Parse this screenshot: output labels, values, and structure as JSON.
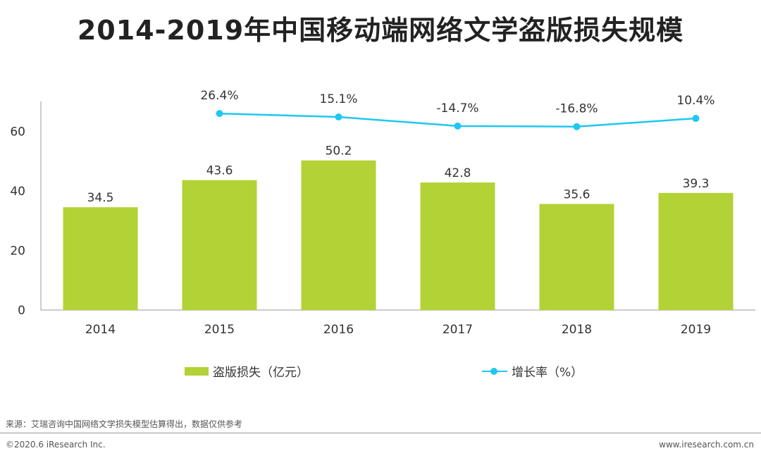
{
  "title": "2014-2019年中国移动端网络文学盗版损失规模",
  "chart_data": {
    "type": "bar+line",
    "categories": [
      "2014",
      "2015",
      "2016",
      "2017",
      "2018",
      "2019"
    ],
    "bar_series": {
      "name": "盗版损失（亿元）",
      "values": [
        34.5,
        43.6,
        50.2,
        42.8,
        35.6,
        39.3
      ],
      "labels": [
        "34.5",
        "43.6",
        "50.2",
        "42.8",
        "35.6",
        "39.3"
      ],
      "color": "#b2d235"
    },
    "line_series": {
      "name": "增长率（%）",
      "values": [
        null,
        26.4,
        15.1,
        -14.7,
        -16.8,
        10.4
      ],
      "labels": [
        "",
        "26.4%",
        "15.1%",
        "-14.7%",
        "-16.8%",
        "10.4%"
      ],
      "color": "#1ec8f0"
    },
    "y_axis": {
      "min": 0,
      "max": 70,
      "ticks": [
        "0",
        "20",
        "40",
        "60"
      ],
      "tick_values": [
        0,
        20,
        40,
        60
      ]
    },
    "legend_position": "bottom"
  },
  "legend": {
    "bar_label": "盗版损失（亿元）",
    "line_label": "增长率（%）"
  },
  "footer": {
    "source": "来源：艾瑞咨询中国网络文学损失模型估算得出，数据仅供参考",
    "copyright": "©2020.6 iResearch Inc.",
    "website": "www.iresearch.com.cn"
  }
}
